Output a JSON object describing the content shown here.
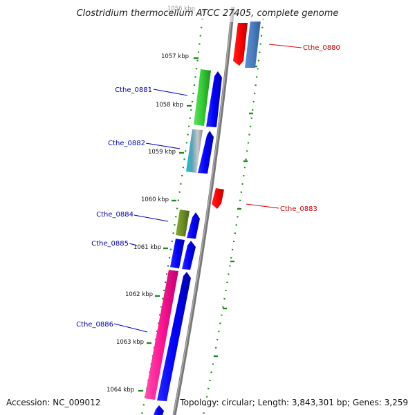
{
  "title": "Clostridium thermocellum ATCC 27405, complete genome",
  "footer": {
    "accession": "Accession: NC_009012",
    "summary": "Topology: circular; Length: 3,843,301 bp; Genes: 3,259"
  },
  "ticks": [
    {
      "label": "1056 kbp"
    },
    {
      "label": "1057 kbp"
    },
    {
      "label": "1058 kbp"
    },
    {
      "label": "1059 kbp"
    },
    {
      "label": "1060 kbp"
    },
    {
      "label": "1061 kbp"
    },
    {
      "label": "1062 kbp"
    },
    {
      "label": "1063 kbp"
    },
    {
      "label": "1064 kbp"
    }
  ],
  "genes": [
    {
      "label": "Cthe_0880",
      "strand": "reverse",
      "color": "#cc0000"
    },
    {
      "label": "Cthe_0881",
      "strand": "forward",
      "color": "#0000aa"
    },
    {
      "label": "Cthe_0882",
      "strand": "forward",
      "color": "#0000aa"
    },
    {
      "label": "Cthe_0883",
      "strand": "reverse",
      "color": "#cc0000"
    },
    {
      "label": "Cthe_0884",
      "strand": "forward",
      "color": "#0000aa"
    },
    {
      "label": "Cthe_0885",
      "strand": "forward",
      "color": "#0000aa"
    },
    {
      "label": "Cthe_0886",
      "strand": "forward",
      "color": "#0000aa"
    }
  ]
}
